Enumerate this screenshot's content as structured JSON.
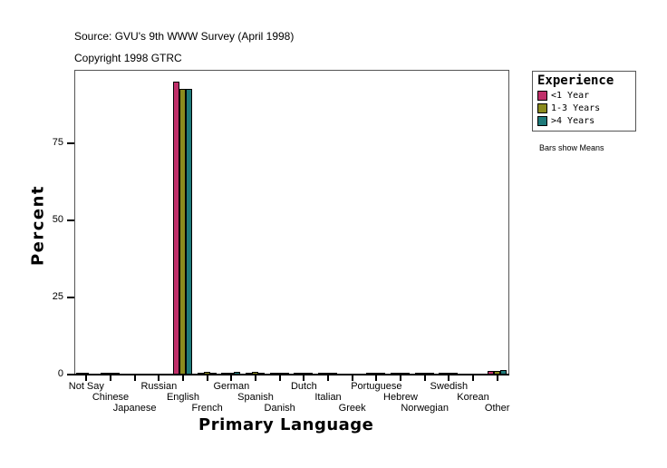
{
  "header": {
    "source": "Source: GVU's 9th WWW Survey (April 1998)",
    "copyright": "Copyright 1998 GTRC"
  },
  "legend": {
    "title": "Experience",
    "items": [
      {
        "label": "<1 Year",
        "color": "#C0306A"
      },
      {
        "label": "1-3 Years",
        "color": "#8B8B1E"
      },
      {
        "label": ">4 Years",
        "color": "#1F7A7A"
      }
    ]
  },
  "note": "Bars show Means",
  "chart_data": {
    "type": "bar",
    "title": "",
    "xlabel": "Primary Language",
    "ylabel": "Percent",
    "ylim": [
      0,
      98.5
    ],
    "yticks": [
      0,
      25,
      50,
      75
    ],
    "grid": false,
    "legend_position": "right",
    "categories": [
      "Not Say",
      "Chinese",
      "Japanese",
      "Russian",
      "English",
      "French",
      "German",
      "Spanish",
      "Danish",
      "Dutch",
      "Italian",
      "Greek",
      "Portuguese",
      "Hebrew",
      "Norwegian",
      "Swedish",
      "Korean",
      "Other"
    ],
    "series": [
      {
        "name": "<1 Year",
        "color": "#C0306A",
        "values": [
          0.3,
          0.2,
          0.0,
          0.0,
          95.0,
          0.5,
          0.3,
          0.6,
          0.2,
          0.2,
          0.2,
          0.0,
          0.1,
          0.2,
          0.2,
          0.2,
          0.0,
          1.2
        ]
      },
      {
        "name": "1-3 Years",
        "color": "#8B8B1E",
        "values": [
          0.2,
          0.3,
          0.0,
          0.0,
          92.6,
          0.9,
          0.5,
          0.9,
          0.2,
          0.2,
          0.2,
          0.0,
          0.2,
          0.2,
          0.1,
          0.2,
          0.0,
          1.2
        ]
      },
      {
        "name": ">4 Years",
        "color": "#1F7A7A",
        "values": [
          0.0,
          0.3,
          0.0,
          0.0,
          92.6,
          0.6,
          0.9,
          0.3,
          0.2,
          0.2,
          0.1,
          0.0,
          0.2,
          0.2,
          0.1,
          0.6,
          0.0,
          1.5
        ]
      }
    ]
  }
}
